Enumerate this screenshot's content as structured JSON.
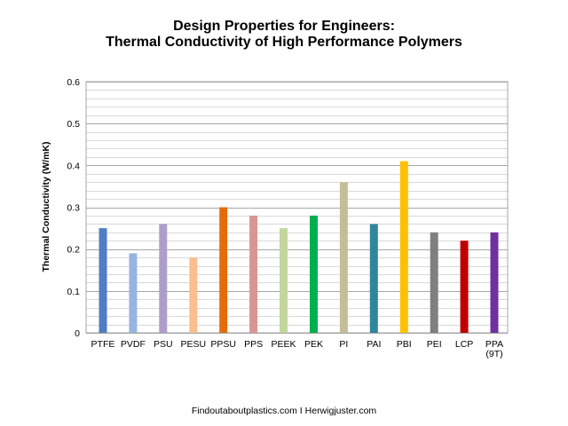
{
  "chart_data": {
    "type": "bar",
    "title_lines": [
      "Design Properties for Engineers:",
      "Thermal Conductivity of High Performance Polymers"
    ],
    "xlabel": "",
    "ylabel": "Thermal Conductivity (W/mK)",
    "ylim": [
      0,
      0.6
    ],
    "y_ticks": [
      "0",
      "0.1",
      "0.2",
      "0.3",
      "0.4",
      "0.5",
      "0.6"
    ],
    "y_tick_values": [
      0,
      0.1,
      0.2,
      0.3,
      0.4,
      0.5,
      0.6
    ],
    "minor_grid_step": 0.02,
    "grid": true,
    "legend": "none",
    "categories": [
      [
        "PTFE"
      ],
      [
        "PVDF"
      ],
      [
        "PSU"
      ],
      [
        "PESU"
      ],
      [
        "PPSU"
      ],
      [
        "PPS"
      ],
      [
        "PEEK"
      ],
      [
        "PEK"
      ],
      [
        "PI"
      ],
      [
        "PAI"
      ],
      [
        "PBI"
      ],
      [
        "PEI"
      ],
      [
        "LCP"
      ],
      [
        "PPA",
        "(9T)"
      ]
    ],
    "values": [
      0.25,
      0.19,
      0.26,
      0.18,
      0.3,
      0.28,
      0.25,
      0.28,
      0.36,
      0.26,
      0.41,
      0.24,
      0.22,
      0.24
    ],
    "colors": [
      "#4f7ec4",
      "#97b4de",
      "#ae9dcb",
      "#f9bf8f",
      "#e46c0a",
      "#d99594",
      "#c3d69b",
      "#00b050",
      "#c4bd97",
      "#31859c",
      "#ffc000",
      "#7f7f7f",
      "#c00000",
      "#7030a0"
    ],
    "footer": "Findoutaboutplastics.com I Herwigjuster.com"
  }
}
